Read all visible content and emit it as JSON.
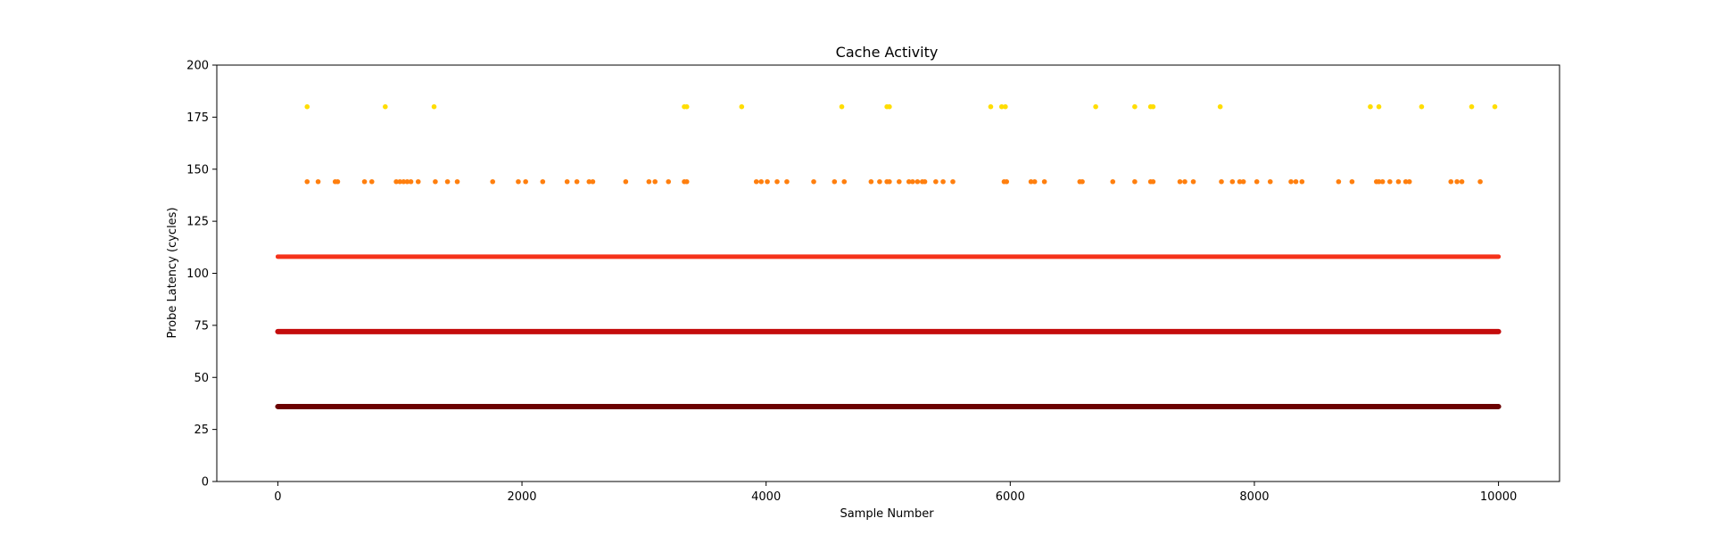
{
  "chart_data": {
    "type": "scatter",
    "title": "Cache Activity",
    "xlabel": "Sample Number",
    "ylabel": "Probe Latency (cycles)",
    "xlim": [
      -500,
      10500
    ],
    "ylim": [
      0,
      200
    ],
    "xticks": [
      0,
      2000,
      4000,
      6000,
      8000,
      10000
    ],
    "yticks": [
      0,
      25,
      50,
      75,
      100,
      125,
      150,
      175,
      200
    ],
    "grid": false,
    "legend": "none",
    "colors": {
      "level_36": "#6b0000",
      "level_72": "#c40c0c",
      "level_108": "#f5321a",
      "level_144": "#ff7f0e",
      "level_180": "#ffdd00"
    },
    "bands": [
      {
        "y": 36,
        "x_range": [
          0,
          10000
        ],
        "description": "continuous"
      },
      {
        "y": 72,
        "x_range": [
          0,
          10000
        ],
        "description": "continuous"
      },
      {
        "y": 108,
        "x_range": [
          0,
          10000
        ],
        "description": "dense"
      }
    ],
    "series": [
      {
        "y": 144,
        "x": [
          240,
          330,
          470,
          490,
          710,
          770,
          970,
          1000,
          1030,
          1060,
          1090,
          1150,
          1290,
          1390,
          1470,
          1760,
          1970,
          2030,
          2170,
          2370,
          2450,
          2550,
          2580,
          2850,
          3040,
          3090,
          3200,
          3330,
          3350,
          3920,
          3960,
          4010,
          4090,
          4170,
          4390,
          4560,
          4640,
          4860,
          4930,
          4990,
          5010,
          5090,
          5170,
          5200,
          5240,
          5280,
          5300,
          5390,
          5450,
          5530,
          5950,
          5970,
          6170,
          6200,
          6280,
          6570,
          6590,
          6840,
          7020,
          7150,
          7170,
          7390,
          7430,
          7500,
          7730,
          7820,
          7880,
          7910,
          8020,
          8130,
          8300,
          8340,
          8390,
          8690,
          8800,
          9000,
          9020,
          9050,
          9110,
          9180,
          9240,
          9270,
          9610,
          9660,
          9700,
          9850
        ]
      },
      {
        "y": 180,
        "x": [
          240,
          880,
          1280,
          3330,
          3350,
          3800,
          4620,
          4990,
          5010,
          5840,
          5930,
          5960,
          6700,
          7020,
          7150,
          7170,
          7720,
          8950,
          9020,
          9370,
          9780,
          9970
        ]
      }
    ]
  }
}
